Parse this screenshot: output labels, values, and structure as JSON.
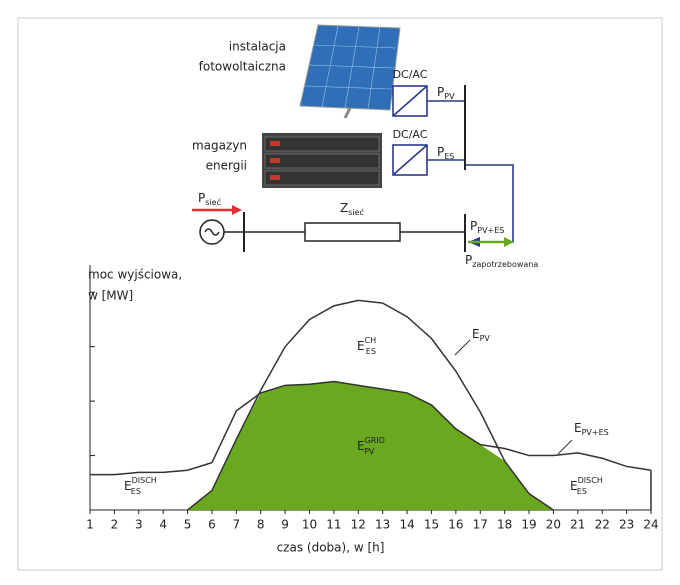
{
  "diagram": {
    "pv_label": [
      "instalacja",
      "fotowoltaiczna"
    ],
    "storage_label": [
      "magazyn",
      "energii"
    ],
    "converter_1": "DC/AC",
    "converter_2": "DC/AC",
    "p_pv": {
      "main": "P",
      "sub": "PV"
    },
    "p_es": {
      "main": "P",
      "sub": "ES"
    },
    "p_siec": {
      "main": "P",
      "sub": "sieć"
    },
    "z_siec": {
      "main": "Z",
      "sub": "sieć"
    },
    "p_pv_es": {
      "main": "P",
      "sub": "PV+ES"
    },
    "p_demand": {
      "main": "P",
      "sub": "zapotrzebowana"
    }
  },
  "chart_data": {
    "type": "line",
    "y_label": [
      "moc wyjściowa,",
      "w [MW]"
    ],
    "x_label": "czas (doba), w [h]",
    "x": [
      1,
      2,
      3,
      4,
      5,
      6,
      7,
      8,
      9,
      10,
      11,
      12,
      13,
      14,
      15,
      16,
      17,
      18,
      19,
      20,
      21,
      22,
      23,
      24
    ],
    "xticks": [
      1,
      2,
      3,
      4,
      5,
      6,
      7,
      8,
      9,
      10,
      11,
      12,
      13,
      14,
      15,
      16,
      17,
      18,
      19,
      20,
      21,
      22,
      23,
      24
    ],
    "xlim": [
      1,
      24
    ],
    "ylim": [
      0,
      4.5
    ],
    "yticks": [
      1,
      2,
      3,
      4
    ],
    "series": [
      {
        "name": {
          "main": "E",
          "sub": "PV"
        },
        "color": "#333333",
        "values": [
          null,
          null,
          null,
          null,
          0,
          0.36,
          1.3,
          2.2,
          3.0,
          3.5,
          3.75,
          3.85,
          3.8,
          3.55,
          3.15,
          2.55,
          1.8,
          0.9,
          0.3,
          0,
          null,
          null,
          null,
          null
        ]
      },
      {
        "name": {
          "main": "E",
          "sub": "PV+ES"
        },
        "color": "#333333",
        "values": [
          0.65,
          0.65,
          0.69,
          0.69,
          0.73,
          0.87,
          1.82,
          2.15,
          2.29,
          2.31,
          2.36,
          2.29,
          2.22,
          2.15,
          1.93,
          1.49,
          1.2,
          1.13,
          1.0,
          1.0,
          1.05,
          0.95,
          0.8,
          0.73
        ]
      }
    ],
    "fill_color": "#6aa820",
    "annotations": [
      {
        "main": "E",
        "sup": "CH",
        "sub": "ES"
      },
      {
        "main": "E",
        "sup": "GRID",
        "sub": "PV"
      },
      {
        "main": "E",
        "sup": "DISCH",
        "sub": "ES"
      },
      {
        "main": "E",
        "sup": "DISCH",
        "sub": "ES"
      }
    ]
  }
}
